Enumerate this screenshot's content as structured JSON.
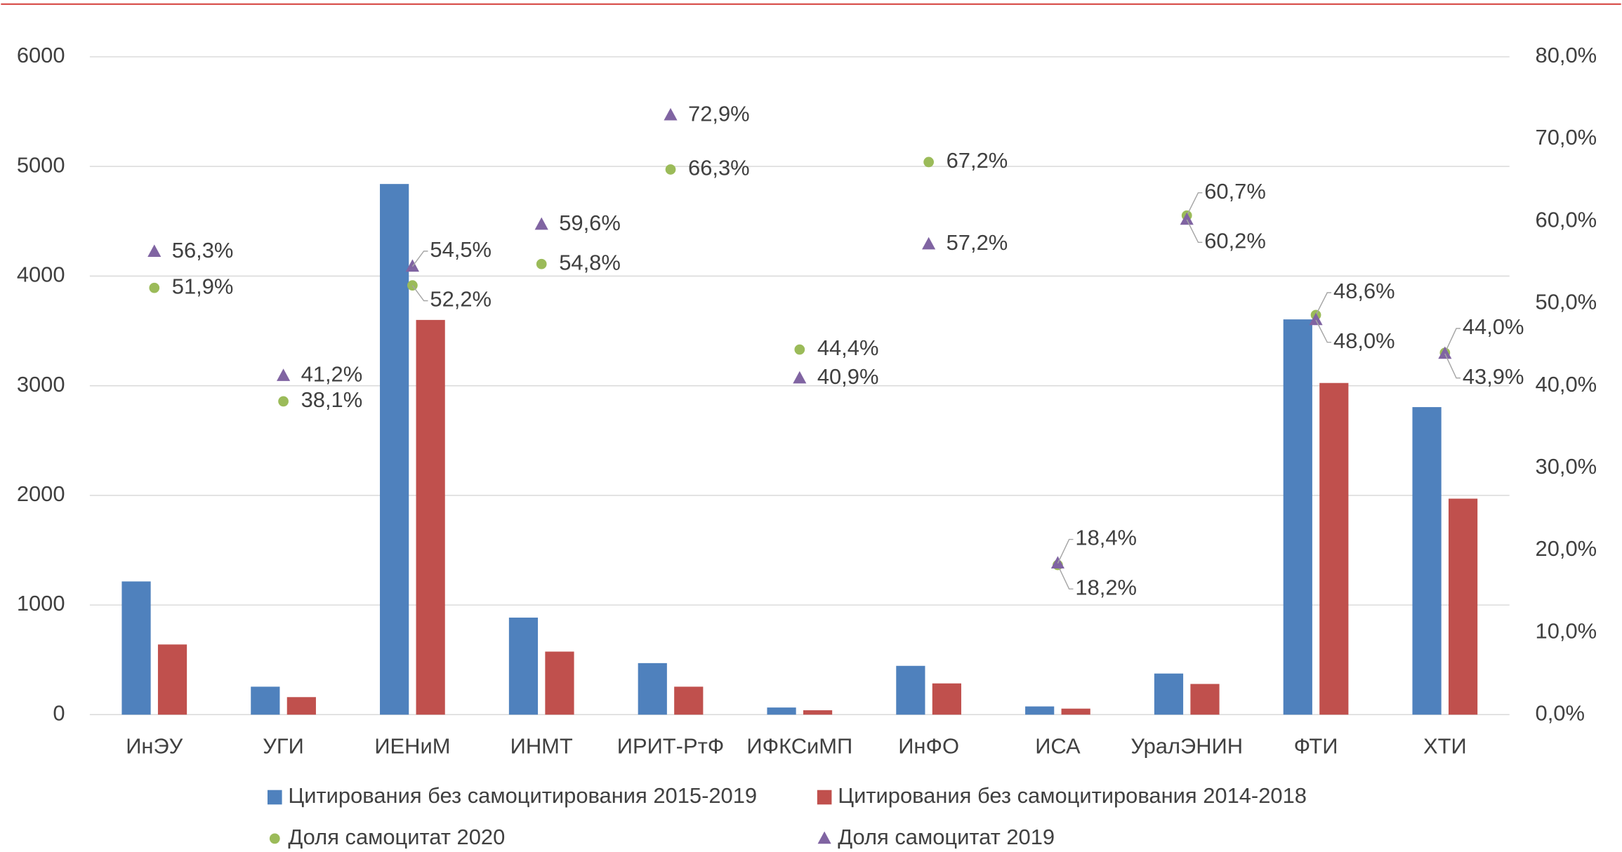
{
  "chart_data": {
    "type": "bar",
    "categories": [
      "ИнЭУ",
      "УГИ",
      "ИЕНиМ",
      "ИНМТ",
      "ИРИТ-РтФ",
      "ИФКСиМП",
      "ИнФО",
      "ИСА",
      "УралЭНИН",
      "ФТИ",
      "ХТИ"
    ],
    "series": [
      {
        "name": "Цитирования без самоцитирования 2015-2019",
        "type": "bar",
        "color": "#4f81bd",
        "values": [
          1215,
          255,
          4840,
          885,
          470,
          65,
          445,
          75,
          375,
          3605,
          2805
        ]
      },
      {
        "name": "Цитирования без самоцитирования 2014-2018",
        "type": "bar",
        "color": "#c0504d",
        "values": [
          640,
          160,
          3600,
          575,
          255,
          40,
          285,
          55,
          280,
          3025,
          1970
        ]
      },
      {
        "name": "Доля самоцитат 2020",
        "type": "scatter",
        "marker": "circle",
        "axis": "y2",
        "color": "#9bbb59",
        "values": [
          51.9,
          38.1,
          52.2,
          54.8,
          66.3,
          44.4,
          67.2,
          18.2,
          60.7,
          48.6,
          44.0
        ],
        "value_labels": [
          "51,9%",
          "38,1%",
          "52,2%",
          "54,8%",
          "66,3%",
          "44,4%",
          "67,2%",
          "18,2%",
          "60,7%",
          "48,6%",
          "44,0%"
        ]
      },
      {
        "name": "Доля самоцитат 2019",
        "type": "scatter",
        "marker": "triangle",
        "axis": "y2",
        "color": "#8064a2",
        "values": [
          56.3,
          41.2,
          54.5,
          59.6,
          72.9,
          40.9,
          57.2,
          18.4,
          60.2,
          48.0,
          43.9
        ],
        "value_labels": [
          "56,3%",
          "41,2%",
          "54,5%",
          "59,6%",
          "72,9%",
          "40,9%",
          "57,2%",
          "18,4%",
          "60,2%",
          "48,0%",
          "43,9%"
        ]
      }
    ],
    "ylim": [
      0,
      6000
    ],
    "yticks": [
      0,
      1000,
      2000,
      3000,
      4000,
      5000,
      6000
    ],
    "y2lim": [
      0,
      80
    ],
    "y2ticks": [
      {
        "value": 0,
        "label": "0,0%"
      },
      {
        "value": 10,
        "label": "10,0%"
      },
      {
        "value": 20,
        "label": "20,0%"
      },
      {
        "value": 30,
        "label": "30,0%"
      },
      {
        "value": 40,
        "label": "40,0%"
      },
      {
        "value": 50,
        "label": "50,0%"
      },
      {
        "value": 60,
        "label": "60,0%"
      },
      {
        "value": 70,
        "label": "70,0%"
      },
      {
        "value": 80,
        "label": "80,0%"
      }
    ],
    "grid": true
  }
}
